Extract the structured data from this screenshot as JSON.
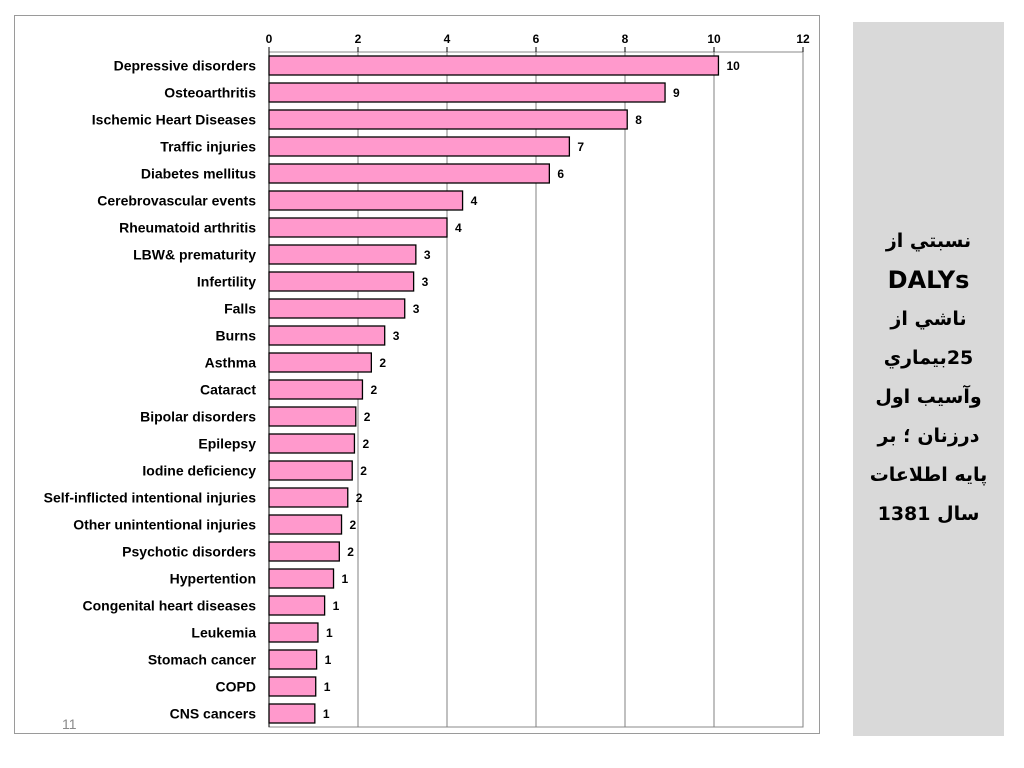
{
  "chart_data": {
    "type": "bar",
    "orientation": "horizontal",
    "categories": [
      "Depressive disorders",
      "Osteoarthritis",
      "Ischemic Heart Diseases",
      "Traffic injuries",
      "Diabetes mellitus",
      "Cerebrovascular events",
      "Rheumatoid arthritis",
      "LBW& prematurity",
      "Infertility",
      "Falls",
      "Burns",
      "Asthma",
      "Cataract",
      "Bipolar disorders",
      "Epilepsy",
      "Iodine deficiency",
      "Self-inflicted intentional injuries",
      "Other unintentional injuries",
      "Psychotic disorders",
      "Hypertention",
      "Congenital heart diseases ",
      "Leukemia",
      "Stomach cancer",
      "COPD",
      "CNS cancers"
    ],
    "values": [
      10.1,
      8.9,
      8.05,
      6.75,
      6.3,
      4.35,
      4.0,
      3.3,
      3.25,
      3.05,
      2.6,
      2.3,
      2.1,
      1.95,
      1.92,
      1.87,
      1.77,
      1.63,
      1.58,
      1.45,
      1.25,
      1.1,
      1.07,
      1.05,
      1.03
    ],
    "data_labels": [
      "10",
      "9",
      "8",
      "7",
      "6",
      "4",
      "4",
      "3",
      "3",
      "3",
      "3",
      "2",
      "2",
      "2",
      "2",
      "2",
      "2",
      "2",
      "2",
      "1",
      "1",
      "1",
      "1",
      "1",
      "1"
    ],
    "xlim": [
      0,
      12
    ],
    "xticks": [
      "0",
      "2",
      "4",
      "6",
      "8",
      "10",
      "12"
    ],
    "xaxis_position": "top",
    "grid": "vertical",
    "title": "",
    "xlabel": "",
    "ylabel": "",
    "bar_color": "#ff99cc",
    "bar_edge_color": "#000000"
  },
  "side_panel": {
    "lines": [
      "نسبتي از",
      "DALYs",
      "ناشي از",
      "25بيماري",
      "وآسيب اول",
      "درزنان  ؛ بر",
      "پايه اطلاعات",
      "سال 1381"
    ]
  },
  "slide_number": "11"
}
